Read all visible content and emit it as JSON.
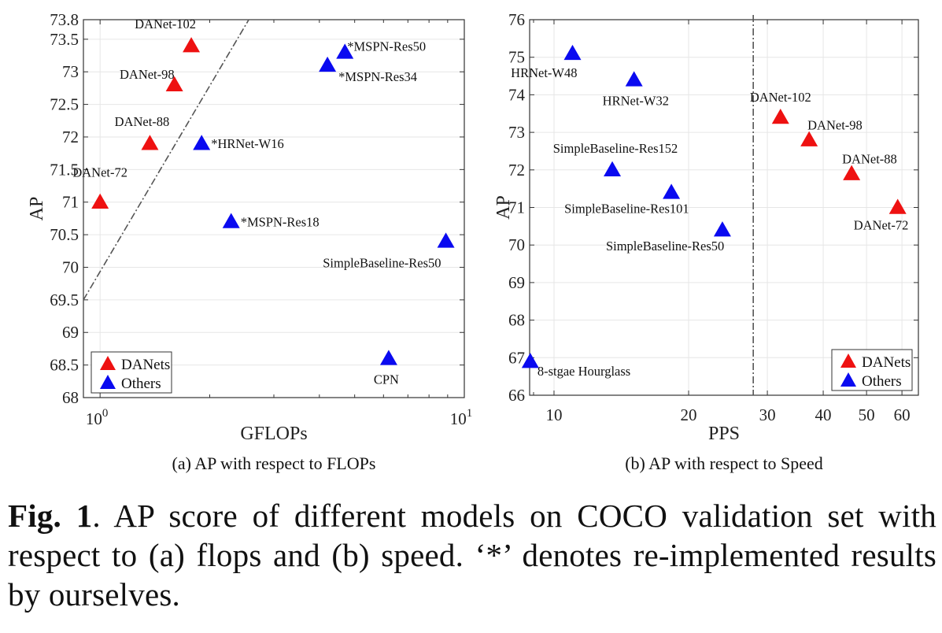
{
  "chart_data": [
    {
      "id": "a",
      "type": "scatter",
      "title": "",
      "subcaption": "(a) AP with respect to FLOPs",
      "xlabel": "GFLOPs",
      "ylabel": "AP",
      "xscale": "log",
      "xlim": [
        0.9,
        10
      ],
      "ylim": [
        68,
        73.8
      ],
      "xticks": [
        1,
        10
      ],
      "xtick_labels": [
        {
          "base": "10",
          "exp": "0"
        },
        {
          "base": "10",
          "exp": "1"
        }
      ],
      "yticks": [
        68,
        68.5,
        69,
        69.5,
        70,
        70.5,
        71,
        71.5,
        72,
        72.5,
        73,
        73.5,
        73.8
      ],
      "ytick_labels": [
        "68",
        "68.5",
        "69",
        "69.5",
        "70",
        "70.5",
        "71",
        "71.5",
        "72",
        "72.5",
        "73",
        "73.5",
        "73.8"
      ],
      "grid": true,
      "legend": {
        "placement": "bottom-left",
        "entries": [
          {
            "name": "DANets",
            "color": "#ee1111"
          },
          {
            "name": "Others",
            "color": "#0a0af0"
          }
        ]
      },
      "reference_line": {
        "style": "dash-dot",
        "from": [
          0.9,
          69.5
        ],
        "to": [
          2.56,
          73.8
        ]
      },
      "series": [
        {
          "name": "DANets",
          "color": "#ee1111",
          "points": [
            {
              "label": "DANet-72",
              "x": 1.0,
              "y": 71.0,
              "label_pos": "above"
            },
            {
              "label": "DANet-88",
              "x": 1.37,
              "y": 71.9,
              "label_pos": "above-left"
            },
            {
              "label": "DANet-98",
              "x": 1.6,
              "y": 72.8,
              "label_pos": "left"
            },
            {
              "label": "DANet-102",
              "x": 1.78,
              "y": 73.4,
              "label_pos": "above-left"
            }
          ]
        },
        {
          "name": "Others",
          "color": "#0a0af0",
          "points": [
            {
              "label": "*HRNet-W16",
              "x": 1.9,
              "y": 71.9,
              "label_pos": "right"
            },
            {
              "label": "*MSPN-Res18",
              "x": 2.29,
              "y": 70.7,
              "label_pos": "right"
            },
            {
              "label": "*MSPN-Res34",
              "x": 4.21,
              "y": 73.1,
              "label_pos": "below-right"
            },
            {
              "label": "*MSPN-Res50",
              "x": 4.7,
              "y": 73.3,
              "label_pos": "above-right"
            },
            {
              "label": "SimpleBaseline-Res50",
              "x": 8.9,
              "y": 70.4,
              "label_pos": "below-left"
            },
            {
              "label": "CPN",
              "x": 6.2,
              "y": 68.6,
              "label_pos": "below"
            }
          ]
        }
      ]
    },
    {
      "id": "b",
      "type": "scatter",
      "title": "",
      "subcaption": "(b) AP with respect to Speed",
      "xlabel": "PPS",
      "ylabel": "AP",
      "xscale": "log",
      "xlim": [
        8.82,
        65.3
      ],
      "ylim": [
        66,
        76
      ],
      "xticks": [
        10,
        20,
        30,
        40,
        50,
        60
      ],
      "xtick_labels": [
        "10",
        "20",
        "30",
        "40",
        "50",
        "60"
      ],
      "yticks": [
        66,
        67,
        68,
        69,
        70,
        71,
        72,
        73,
        74,
        75,
        76
      ],
      "ytick_labels": [
        "66",
        "67",
        "68",
        "69",
        "70",
        "71",
        "72",
        "73",
        "74",
        "75",
        "76"
      ],
      "grid": true,
      "legend": {
        "placement": "bottom-right",
        "entries": [
          {
            "name": "DANets",
            "color": "#ee1111"
          },
          {
            "name": "Others",
            "color": "#0a0af0"
          }
        ]
      },
      "reference_line": {
        "style": "dash-dot",
        "vertical_x": 27.9
      },
      "series": [
        {
          "name": "DANets",
          "color": "#ee1111",
          "points": [
            {
              "label": "DANet-102",
              "x": 32.1,
              "y": 73.4,
              "label_pos": "above"
            },
            {
              "label": "DANet-98",
              "x": 37.2,
              "y": 72.8,
              "label_pos": "above-right"
            },
            {
              "label": "DANet-88",
              "x": 46.3,
              "y": 71.9,
              "label_pos": "above"
            },
            {
              "label": "DANet-72",
              "x": 58.7,
              "y": 71.0,
              "label_pos": "below-left"
            }
          ]
        },
        {
          "name": "Others",
          "color": "#0a0af0",
          "points": [
            {
              "label": "8-stgae Hourglass",
              "x": 8.85,
              "y": 66.9,
              "label_pos": "below-right"
            },
            {
              "label": "HRNet-W48",
              "x": 11.0,
              "y": 75.1,
              "label_pos": "below"
            },
            {
              "label": "HRNet-W32",
              "x": 15.1,
              "y": 74.4,
              "label_pos": "below"
            },
            {
              "label": "SimpleBaseline-Res152",
              "x": 13.5,
              "y": 72.0,
              "label_pos": "above"
            },
            {
              "label": "SimpleBaseline-Res101",
              "x": 18.3,
              "y": 71.4,
              "label_pos": "below-left"
            },
            {
              "label": "SimpleBaseline-Res50",
              "x": 23.8,
              "y": 70.4,
              "label_pos": "below-left"
            }
          ]
        }
      ]
    }
  ],
  "caption": {
    "fig_label": "Fig. 1",
    "text": ".  AP score of different models on COCO validation set with respect to (a) flops and (b) speed.  ‘*’ denotes re-implemented results by ourselves."
  }
}
